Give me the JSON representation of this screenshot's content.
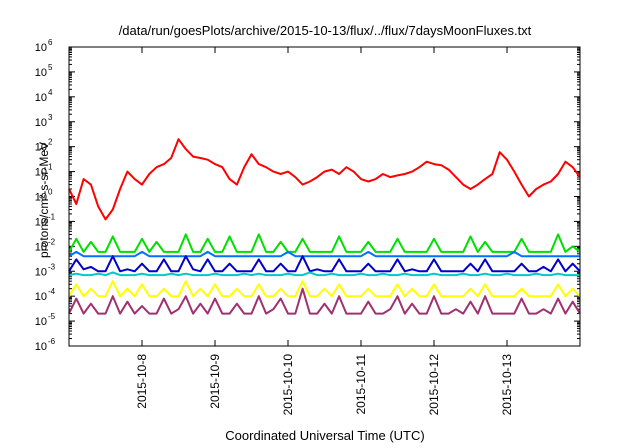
{
  "chart_data": {
    "type": "line",
    "title": "/data/run/goesPlots/archive/2015-10-13/flux/../flux/7daysMoonFluxes.txt",
    "xlabel": "Coordinated Universal Time (UTC)",
    "ylabel": "protons/cm²-s-sr-MeV",
    "y_scale": "log",
    "ylim": [
      1e-06,
      1000000.0
    ],
    "xlim": [
      0,
      7
    ],
    "y_ticks": [
      {
        "base": "10",
        "exp": "-6",
        "value": 1e-06
      },
      {
        "base": "10",
        "exp": "-5",
        "value": 1e-05
      },
      {
        "base": "10",
        "exp": "-4",
        "value": 0.0001
      },
      {
        "base": "10",
        "exp": "-3",
        "value": 0.001
      },
      {
        "base": "10",
        "exp": "-2",
        "value": 0.01
      },
      {
        "base": "10",
        "exp": "-1",
        "value": 0.1
      },
      {
        "base": "10",
        "exp": "0",
        "value": 1
      },
      {
        "base": "10",
        "exp": "1",
        "value": 10
      },
      {
        "base": "10",
        "exp": "2",
        "value": 100
      },
      {
        "base": "10",
        "exp": "3",
        "value": 1000
      },
      {
        "base": "10",
        "exp": "4",
        "value": 10000
      },
      {
        "base": "10",
        "exp": "5",
        "value": 100000
      },
      {
        "base": "10",
        "exp": "6",
        "value": 1000000
      }
    ],
    "x_ticks": [
      {
        "label": "2015-10-8",
        "value": 1
      },
      {
        "label": "2015-10-9",
        "value": 2
      },
      {
        "label": "2015-10-10",
        "value": 3
      },
      {
        "label": "2015-10-11",
        "value": 4
      },
      {
        "label": "2015-10-12",
        "value": 5
      },
      {
        "label": "2015-10-13",
        "value": 6
      }
    ],
    "grid": false,
    "legend": "none",
    "series": [
      {
        "color": "#ff0000",
        "x": [
          0,
          0.1,
          0.2,
          0.3,
          0.4,
          0.5,
          0.6,
          0.7,
          0.8,
          0.9,
          1.0,
          1.1,
          1.2,
          1.3,
          1.4,
          1.5,
          1.6,
          1.7,
          1.8,
          1.9,
          2.0,
          2.1,
          2.2,
          2.3,
          2.4,
          2.5,
          2.6,
          2.7,
          2.8,
          2.9,
          3.0,
          3.1,
          3.2,
          3.3,
          3.4,
          3.5,
          3.6,
          3.7,
          3.8,
          3.9,
          4.0,
          4.1,
          4.2,
          4.3,
          4.4,
          4.5,
          4.6,
          4.7,
          4.8,
          4.9,
          5.0,
          5.1,
          5.2,
          5.3,
          5.4,
          5.5,
          5.6,
          5.7,
          5.8,
          5.9,
          6.0,
          6.1,
          6.2,
          6.3,
          6.4,
          6.5,
          6.6,
          6.7,
          6.8,
          6.9,
          7.0
        ],
        "y": [
          2,
          0.5,
          5,
          3,
          0.4,
          0.12,
          0.3,
          2,
          10,
          5,
          3,
          8,
          15,
          20,
          35,
          200,
          80,
          40,
          35,
          30,
          20,
          15,
          5,
          3,
          15,
          50,
          20,
          15,
          10,
          8,
          10,
          6,
          3,
          4,
          6,
          10,
          12,
          8,
          15,
          10,
          5,
          4,
          5,
          8,
          6,
          7,
          8,
          10,
          15,
          25,
          20,
          18,
          12,
          6,
          3,
          2,
          3,
          5,
          8,
          60,
          30,
          10,
          3,
          1,
          2,
          3,
          4,
          8,
          25,
          15,
          6
        ]
      },
      {
        "color": "#00e000",
        "x": [
          0,
          0.1,
          0.2,
          0.3,
          0.4,
          0.5,
          0.6,
          0.7,
          0.8,
          0.9,
          1.0,
          1.1,
          1.2,
          1.3,
          1.4,
          1.5,
          1.6,
          1.7,
          1.8,
          1.9,
          2.0,
          2.1,
          2.2,
          2.3,
          2.4,
          2.5,
          2.6,
          2.7,
          2.8,
          2.9,
          3.0,
          3.1,
          3.2,
          3.3,
          3.4,
          3.5,
          3.6,
          3.7,
          3.8,
          3.9,
          4.0,
          4.1,
          4.2,
          4.3,
          4.4,
          4.5,
          4.6,
          4.7,
          4.8,
          4.9,
          5.0,
          5.1,
          5.2,
          5.3,
          5.4,
          5.5,
          5.6,
          5.7,
          5.8,
          5.9,
          6.0,
          6.1,
          6.2,
          6.3,
          6.4,
          6.5,
          6.6,
          6.7,
          6.8,
          6.9,
          7.0
        ],
        "y": [
          0.006,
          0.02,
          0.006,
          0.015,
          0.006,
          0.006,
          0.025,
          0.006,
          0.006,
          0.006,
          0.02,
          0.006,
          0.015,
          0.006,
          0.006,
          0.006,
          0.03,
          0.006,
          0.006,
          0.02,
          0.006,
          0.006,
          0.025,
          0.006,
          0.006,
          0.006,
          0.03,
          0.006,
          0.006,
          0.015,
          0.006,
          0.006,
          0.02,
          0.006,
          0.006,
          0.006,
          0.006,
          0.025,
          0.006,
          0.006,
          0.006,
          0.015,
          0.006,
          0.006,
          0.006,
          0.02,
          0.006,
          0.006,
          0.006,
          0.006,
          0.02,
          0.006,
          0.006,
          0.006,
          0.006,
          0.025,
          0.006,
          0.015,
          0.006,
          0.006,
          0.006,
          0.006,
          0.02,
          0.006,
          0.006,
          0.006,
          0.006,
          0.03,
          0.006,
          0.01,
          0.006
        ]
      },
      {
        "color": "#0070ff",
        "x": [
          0,
          0.1,
          0.2,
          0.3,
          0.4,
          0.5,
          0.6,
          0.7,
          0.8,
          0.9,
          1.0,
          1.1,
          1.2,
          1.3,
          1.4,
          1.5,
          1.6,
          1.7,
          1.8,
          1.9,
          2.0,
          2.1,
          2.2,
          2.3,
          2.4,
          2.5,
          2.6,
          2.7,
          2.8,
          2.9,
          3.0,
          3.1,
          3.2,
          3.3,
          3.4,
          3.5,
          3.6,
          3.7,
          3.8,
          3.9,
          4.0,
          4.1,
          4.2,
          4.3,
          4.4,
          4.5,
          4.6,
          4.7,
          4.8,
          4.9,
          5.0,
          5.1,
          5.2,
          5.3,
          5.4,
          5.5,
          5.6,
          5.7,
          5.8,
          5.9,
          6.0,
          6.1,
          6.2,
          6.3,
          6.4,
          6.5,
          6.6,
          6.7,
          6.8,
          6.9,
          7.0
        ],
        "y": [
          0.004,
          0.006,
          0.004,
          0.004,
          0.004,
          0.004,
          0.004,
          0.004,
          0.004,
          0.004,
          0.006,
          0.004,
          0.004,
          0.004,
          0.004,
          0.004,
          0.004,
          0.004,
          0.004,
          0.006,
          0.004,
          0.004,
          0.004,
          0.004,
          0.004,
          0.004,
          0.004,
          0.004,
          0.004,
          0.004,
          0.006,
          0.004,
          0.004,
          0.004,
          0.004,
          0.004,
          0.004,
          0.004,
          0.004,
          0.004,
          0.004,
          0.006,
          0.004,
          0.004,
          0.004,
          0.004,
          0.004,
          0.004,
          0.004,
          0.004,
          0.004,
          0.004,
          0.004,
          0.004,
          0.004,
          0.004,
          0.004,
          0.004,
          0.004,
          0.004,
          0.004,
          0.006,
          0.004,
          0.004,
          0.004,
          0.004,
          0.004,
          0.004,
          0.004,
          0.004,
          0.004
        ]
      },
      {
        "color": "#0000c8",
        "x": [
          0,
          0.1,
          0.2,
          0.3,
          0.4,
          0.5,
          0.6,
          0.7,
          0.8,
          0.9,
          1.0,
          1.1,
          1.2,
          1.3,
          1.4,
          1.5,
          1.6,
          1.7,
          1.8,
          1.9,
          2.0,
          2.1,
          2.2,
          2.3,
          2.4,
          2.5,
          2.6,
          2.7,
          2.8,
          2.9,
          3.0,
          3.1,
          3.2,
          3.3,
          3.4,
          3.5,
          3.6,
          3.7,
          3.8,
          3.9,
          4.0,
          4.1,
          4.2,
          4.3,
          4.4,
          4.5,
          4.6,
          4.7,
          4.8,
          4.9,
          5.0,
          5.1,
          5.2,
          5.3,
          5.4,
          5.5,
          5.6,
          5.7,
          5.8,
          5.9,
          6.0,
          6.1,
          6.2,
          6.3,
          6.4,
          6.5,
          6.6,
          6.7,
          6.8,
          6.9,
          7.0
        ],
        "y": [
          0.001,
          0.003,
          0.0012,
          0.0015,
          0.001,
          0.001,
          0.004,
          0.001,
          0.0012,
          0.001,
          0.002,
          0.001,
          0.001,
          0.003,
          0.001,
          0.001,
          0.004,
          0.0012,
          0.001,
          0.003,
          0.001,
          0.001,
          0.002,
          0.001,
          0.001,
          0.001,
          0.003,
          0.001,
          0.001,
          0.002,
          0.001,
          0.001,
          0.004,
          0.001,
          0.0012,
          0.001,
          0.001,
          0.003,
          0.001,
          0.001,
          0.001,
          0.002,
          0.001,
          0.001,
          0.001,
          0.003,
          0.001,
          0.0012,
          0.001,
          0.001,
          0.003,
          0.001,
          0.001,
          0.001,
          0.001,
          0.002,
          0.001,
          0.003,
          0.001,
          0.001,
          0.001,
          0.001,
          0.002,
          0.001,
          0.001,
          0.0015,
          0.001,
          0.003,
          0.001,
          0.002,
          0.001
        ]
      },
      {
        "color": "#00c8c8",
        "x": [
          0,
          0.1,
          0.2,
          0.3,
          0.4,
          0.5,
          0.6,
          0.7,
          0.8,
          0.9,
          1.0,
          1.1,
          1.2,
          1.3,
          1.4,
          1.5,
          1.6,
          1.7,
          1.8,
          1.9,
          2.0,
          2.1,
          2.2,
          2.3,
          2.4,
          2.5,
          2.6,
          2.7,
          2.8,
          2.9,
          3.0,
          3.1,
          3.2,
          3.3,
          3.4,
          3.5,
          3.6,
          3.7,
          3.8,
          3.9,
          4.0,
          4.1,
          4.2,
          4.3,
          4.4,
          4.5,
          4.6,
          4.7,
          4.8,
          4.9,
          5.0,
          5.1,
          5.2,
          5.3,
          5.4,
          5.5,
          5.6,
          5.7,
          5.8,
          5.9,
          6.0,
          6.1,
          6.2,
          6.3,
          6.4,
          6.5,
          6.6,
          6.7,
          6.8,
          6.9,
          7.0
        ],
        "y": [
          0.0007,
          0.0008,
          0.0007,
          0.0007,
          0.0008,
          0.0007,
          0.0009,
          0.0007,
          0.0007,
          0.0007,
          0.0008,
          0.0007,
          0.0007,
          0.0007,
          0.0008,
          0.0007,
          0.0008,
          0.0007,
          0.0007,
          0.0007,
          0.0008,
          0.0007,
          0.0007,
          0.0007,
          0.0008,
          0.0007,
          0.0008,
          0.0007,
          0.0007,
          0.0007,
          0.0008,
          0.0007,
          0.0007,
          0.0009,
          0.0007,
          0.0007,
          0.0008,
          0.0007,
          0.0007,
          0.0007,
          0.0008,
          0.0007,
          0.0007,
          0.0008,
          0.0007,
          0.0007,
          0.0008,
          0.0007,
          0.0007,
          0.0007,
          0.0008,
          0.0007,
          0.0007,
          0.0007,
          0.0008,
          0.0007,
          0.0007,
          0.0008,
          0.0007,
          0.0007,
          0.0008,
          0.0007,
          0.0007,
          0.0007,
          0.0008,
          0.0007,
          0.0007,
          0.0008,
          0.0007,
          0.0007,
          0.0007
        ]
      },
      {
        "color": "#ffff00",
        "x": [
          0,
          0.1,
          0.2,
          0.3,
          0.4,
          0.5,
          0.6,
          0.7,
          0.8,
          0.9,
          1.0,
          1.1,
          1.2,
          1.3,
          1.4,
          1.5,
          1.6,
          1.7,
          1.8,
          1.9,
          2.0,
          2.1,
          2.2,
          2.3,
          2.4,
          2.5,
          2.6,
          2.7,
          2.8,
          2.9,
          3.0,
          3.1,
          3.2,
          3.3,
          3.4,
          3.5,
          3.6,
          3.7,
          3.8,
          3.9,
          4.0,
          4.1,
          4.2,
          4.3,
          4.4,
          4.5,
          4.6,
          4.7,
          4.8,
          4.9,
          5.0,
          5.1,
          5.2,
          5.3,
          5.4,
          5.5,
          5.6,
          5.7,
          5.8,
          5.9,
          6.0,
          6.1,
          6.2,
          6.3,
          6.4,
          6.5,
          6.6,
          6.7,
          6.8,
          6.9,
          7.0
        ],
        "y": [
          0.0001,
          0.0003,
          0.0001,
          0.0002,
          0.0001,
          0.0001,
          0.0004,
          0.0001,
          0.0002,
          0.0001,
          0.0003,
          0.0001,
          0.0001,
          0.0002,
          0.0001,
          0.0001,
          0.0004,
          0.0001,
          0.0002,
          0.0001,
          0.0003,
          0.0001,
          0.0001,
          0.0002,
          0.0001,
          0.0001,
          0.0003,
          0.0001,
          0.0001,
          0.0002,
          0.0001,
          0.0001,
          0.0004,
          0.0001,
          0.0001,
          0.0002,
          0.0001,
          0.0003,
          0.0001,
          0.0001,
          0.0001,
          0.0002,
          0.0001,
          0.0001,
          0.0001,
          0.0003,
          0.0001,
          0.0002,
          0.0001,
          0.0001,
          0.0003,
          0.0001,
          0.0001,
          0.0001,
          0.0001,
          0.0002,
          0.0001,
          0.0003,
          0.0001,
          0.0001,
          0.0001,
          0.0001,
          0.0002,
          0.0001,
          0.0001,
          0.0001,
          0.0001,
          0.0003,
          0.0001,
          0.0002,
          0.0001
        ]
      },
      {
        "color": "#a0306e",
        "x": [
          0,
          0.1,
          0.2,
          0.3,
          0.4,
          0.5,
          0.6,
          0.7,
          0.8,
          0.9,
          1.0,
          1.1,
          1.2,
          1.3,
          1.4,
          1.5,
          1.6,
          1.7,
          1.8,
          1.9,
          2.0,
          2.1,
          2.2,
          2.3,
          2.4,
          2.5,
          2.6,
          2.7,
          2.8,
          2.9,
          3.0,
          3.1,
          3.2,
          3.3,
          3.4,
          3.5,
          3.6,
          3.7,
          3.8,
          3.9,
          4.0,
          4.1,
          4.2,
          4.3,
          4.4,
          4.5,
          4.6,
          4.7,
          4.8,
          4.9,
          5.0,
          5.1,
          5.2,
          5.3,
          5.4,
          5.5,
          5.6,
          5.7,
          5.8,
          5.9,
          6.0,
          6.1,
          6.2,
          6.3,
          6.4,
          6.5,
          6.6,
          6.7,
          6.8,
          6.9,
          7.0
        ],
        "y": [
          2e-05,
          8e-05,
          2e-05,
          5e-05,
          2e-05,
          2e-05,
          0.0001,
          2e-05,
          6e-05,
          2e-05,
          4e-05,
          2e-05,
          2e-05,
          8e-05,
          2e-05,
          3e-05,
          0.0001,
          2e-05,
          5e-05,
          2e-05,
          8e-05,
          2e-05,
          2e-05,
          5e-05,
          2e-05,
          2e-05,
          0.0001,
          2e-05,
          3e-05,
          8e-05,
          2e-05,
          2e-05,
          0.0002,
          2e-05,
          2e-05,
          5e-05,
          2e-05,
          0.0001,
          2e-05,
          2e-05,
          2e-05,
          6e-05,
          2e-05,
          2e-05,
          3e-05,
          0.0001,
          2e-05,
          5e-05,
          2e-05,
          2e-05,
          0.0001,
          2e-05,
          2e-05,
          3e-05,
          2e-05,
          6e-05,
          2e-05,
          0.0001,
          2e-05,
          2e-05,
          2e-05,
          2e-05,
          8e-05,
          2e-05,
          2e-05,
          3e-05,
          2e-05,
          8e-05,
          2e-05,
          6e-05,
          2e-05
        ]
      }
    ]
  }
}
